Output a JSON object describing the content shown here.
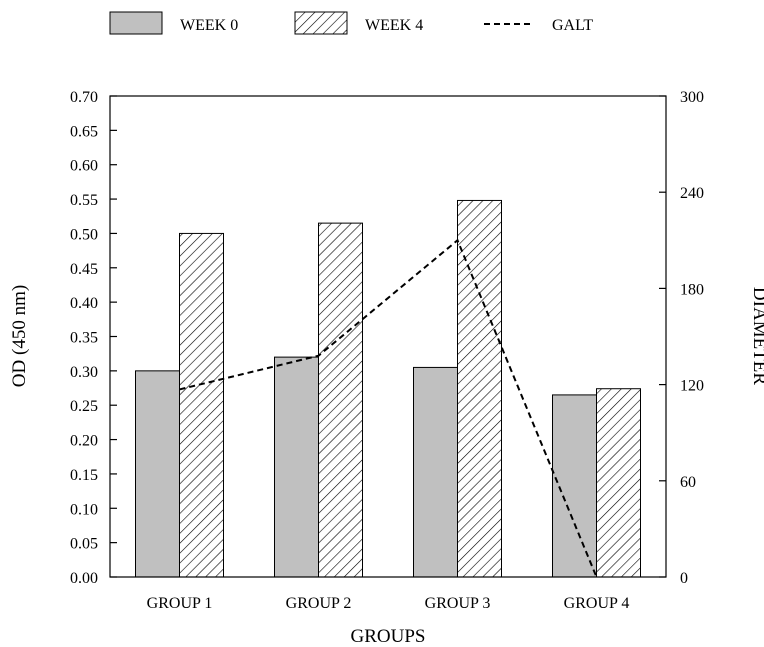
{
  "chart_data": {
    "type": "bar",
    "categories": [
      "GROUP 1",
      "GROUP 2",
      "GROUP 3",
      "GROUP 4"
    ],
    "series": [
      {
        "name": "WEEK 0",
        "kind": "bar",
        "axis": "left",
        "pattern": "solid-gray",
        "color": "#c0c0c0",
        "values": [
          0.3,
          0.32,
          0.305,
          0.265
        ]
      },
      {
        "name": "WEEK 4",
        "kind": "bar",
        "axis": "left",
        "pattern": "diagonal-hatch",
        "color": "#ffffff",
        "values": [
          0.5,
          0.515,
          0.548,
          0.274
        ]
      },
      {
        "name": "GALT",
        "kind": "line",
        "axis": "right",
        "style": "dashed",
        "color": "#000000",
        "values": [
          117,
          138,
          210,
          0
        ]
      }
    ],
    "xlabel": "GROUPS",
    "ylabel": "OD (450 nm)",
    "y2label": "DIAMETER",
    "ylim": [
      0,
      0.7
    ],
    "y2lim": [
      0,
      300
    ],
    "yticks": [
      "0.00",
      "0.05",
      "0.10",
      "0.15",
      "0.20",
      "0.25",
      "0.30",
      "0.35",
      "0.40",
      "0.45",
      "0.50",
      "0.55",
      "0.60",
      "0.65",
      "0.70"
    ],
    "y2ticks": [
      "0",
      "60",
      "120",
      "180",
      "240",
      "300"
    ],
    "legend_position": "top",
    "grid": false
  }
}
